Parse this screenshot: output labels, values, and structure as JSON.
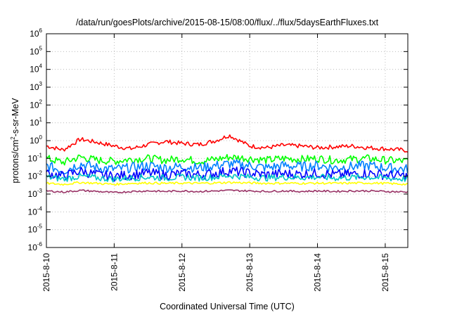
{
  "chart_data": {
    "type": "line",
    "title": "/data/run/goesPlots/archive/2015-08-15/08:00/flux/../flux/5daysEarthFluxes.txt",
    "xlabel": "Coordinated Universal Time (UTC)",
    "ylabel": {
      "pre": "protons/cm",
      "sup": "2",
      "post": "-s-sr-MeV"
    },
    "y_scale": "log",
    "ylim": [
      1e-06,
      1000000.0
    ],
    "xlim": [
      "2015-08-10 00:00",
      "2015-08-15 08:00"
    ],
    "x_ticks": [
      "2015-8-10",
      "2015-8-11",
      "2015-8-12",
      "2015-8-13",
      "2015-8-14",
      "2015-8-15"
    ],
    "y_ticks": [
      {
        "base": "10",
        "exp": "-6"
      },
      {
        "base": "10",
        "exp": "-5"
      },
      {
        "base": "10",
        "exp": "-4"
      },
      {
        "base": "10",
        "exp": "-3"
      },
      {
        "base": "10",
        "exp": "-2"
      },
      {
        "base": "10",
        "exp": "-1"
      },
      {
        "base": "10",
        "exp": "0"
      },
      {
        "base": "10",
        "exp": "1"
      },
      {
        "base": "10",
        "exp": "2"
      },
      {
        "base": "10",
        "exp": "3"
      },
      {
        "base": "10",
        "exp": "4"
      },
      {
        "base": "10",
        "exp": "5"
      },
      {
        "base": "10",
        "exp": "6"
      }
    ],
    "grid": true,
    "x_days": [
      0,
      0.25,
      0.5,
      0.75,
      1.0,
      1.25,
      1.5,
      1.75,
      2.0,
      2.25,
      2.5,
      2.7,
      3.0,
      3.25,
      3.5,
      3.75,
      4.0,
      4.25,
      4.5,
      4.75,
      5.0,
      5.33
    ],
    "series": [
      {
        "color": "#ff0000",
        "values": [
          0.5,
          0.3,
          1.2,
          0.8,
          0.5,
          0.35,
          0.6,
          0.9,
          0.7,
          0.6,
          1.0,
          2.0,
          0.5,
          0.4,
          0.55,
          0.5,
          0.4,
          0.45,
          0.5,
          0.4,
          0.35,
          0.28
        ]
      },
      {
        "color": "#00ff00",
        "values": [
          0.1,
          0.06,
          0.12,
          0.08,
          0.07,
          0.09,
          0.1,
          0.08,
          0.1,
          0.07,
          0.09,
          0.12,
          0.1,
          0.08,
          0.1,
          0.09,
          0.1,
          0.08,
          0.09,
          0.1,
          0.08,
          0.07
        ]
      },
      {
        "color": "#0080ff",
        "values": [
          0.04,
          0.02,
          0.05,
          0.03,
          0.025,
          0.03,
          0.04,
          0.03,
          0.035,
          0.03,
          0.04,
          0.05,
          0.04,
          0.03,
          0.04,
          0.035,
          0.04,
          0.03,
          0.035,
          0.04,
          0.03,
          0.025
        ]
      },
      {
        "color": "#0000ff",
        "values": [
          0.015,
          0.01,
          0.02,
          0.012,
          0.01,
          0.012,
          0.015,
          0.012,
          0.014,
          0.012,
          0.015,
          0.02,
          0.015,
          0.012,
          0.014,
          0.013,
          0.015,
          0.012,
          0.013,
          0.015,
          0.012,
          0.01
        ]
      },
      {
        "color": "#00c8c8",
        "values": [
          0.009,
          0.007,
          0.01,
          0.008,
          0.007,
          0.008,
          0.009,
          0.008,
          0.009,
          0.008,
          0.009,
          0.011,
          0.009,
          0.008,
          0.009,
          0.0085,
          0.009,
          0.008,
          0.0085,
          0.009,
          0.008,
          0.007
        ]
      },
      {
        "color": "#ffff00",
        "values": [
          0.004,
          0.0035,
          0.0045,
          0.004,
          0.0035,
          0.004,
          0.0042,
          0.004,
          0.0041,
          0.004,
          0.0042,
          0.0045,
          0.0042,
          0.004,
          0.0041,
          0.004,
          0.0041,
          0.004,
          0.0041,
          0.0042,
          0.004,
          0.0035
        ]
      },
      {
        "color": "#993366",
        "values": [
          0.0015,
          0.0013,
          0.0016,
          0.0014,
          0.0012,
          0.0014,
          0.0015,
          0.0014,
          0.0015,
          0.0014,
          0.0015,
          0.0016,
          0.0015,
          0.0014,
          0.0015,
          0.0014,
          0.0015,
          0.0014,
          0.0015,
          0.0015,
          0.0014,
          0.0013
        ]
      }
    ]
  }
}
